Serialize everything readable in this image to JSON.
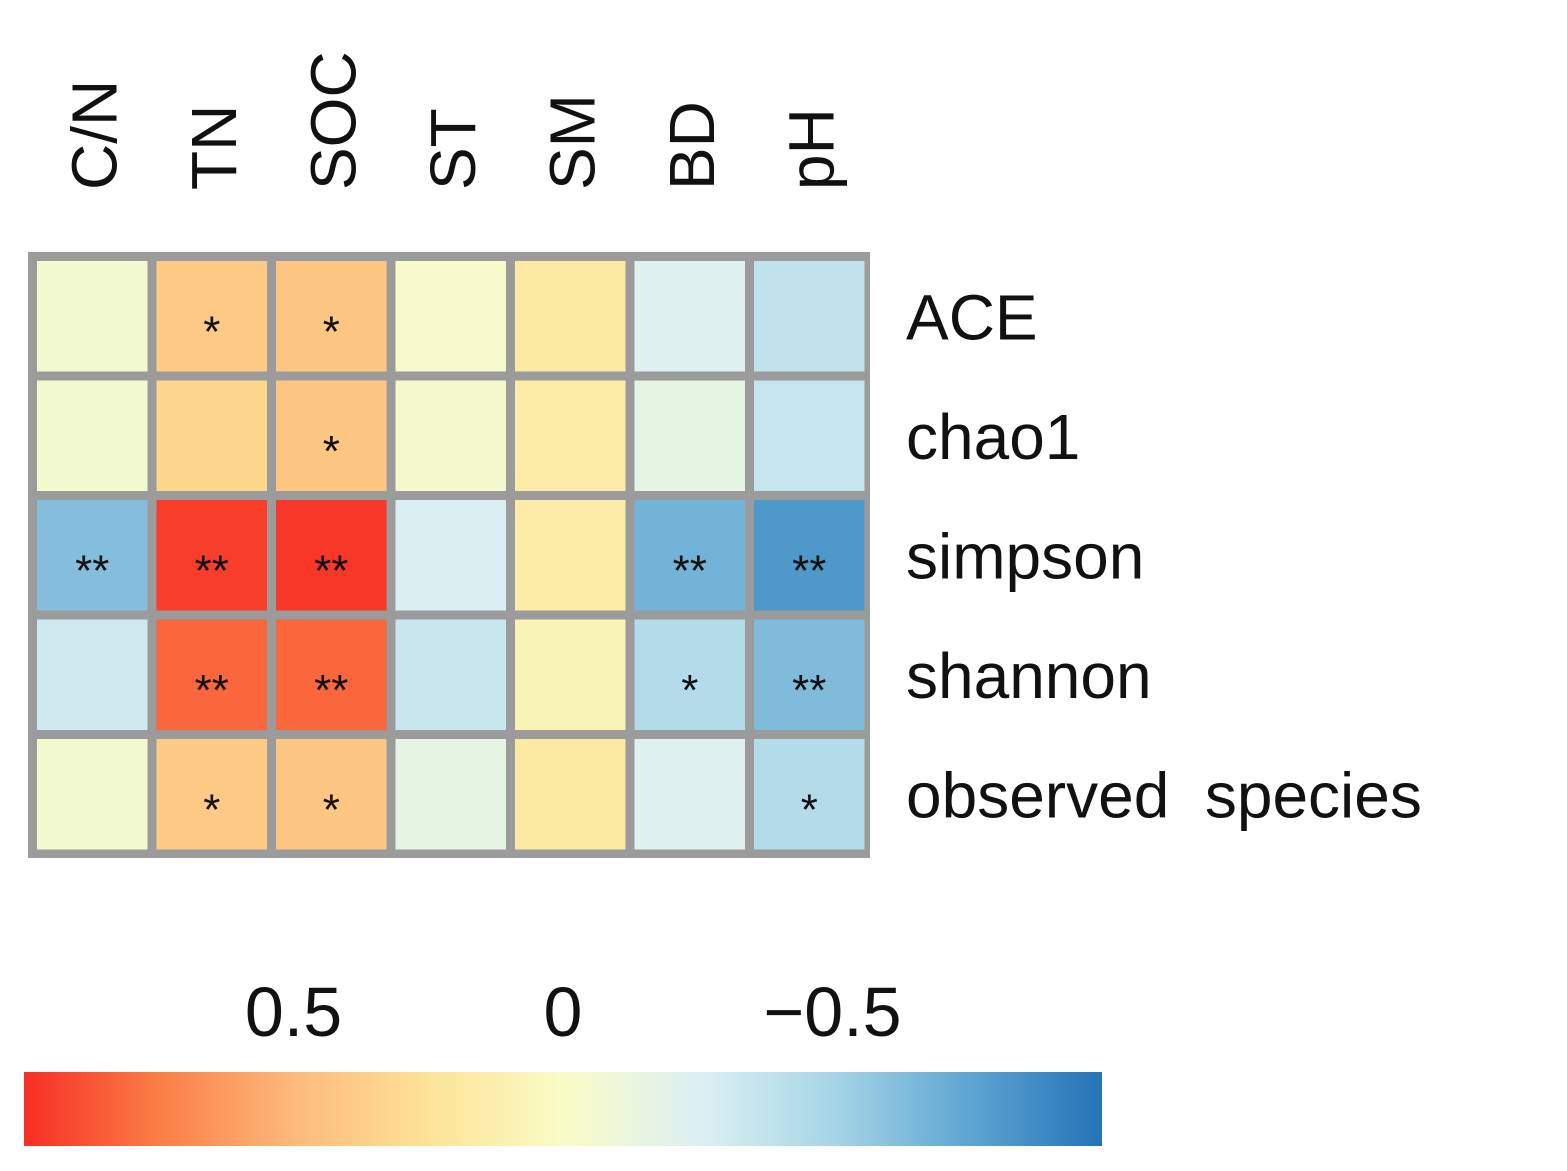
{
  "chart_data": {
    "type": "heatmap",
    "title": "",
    "columns": [
      "C/N",
      "TN",
      "SOC",
      "ST",
      "SM",
      "BD",
      "pH"
    ],
    "rows": [
      "ACE",
      "chao1",
      "simpson",
      "shannon",
      "observed  species"
    ],
    "values": [
      [
        -0.05,
        0.4,
        0.42,
        -0.02,
        0.18,
        -0.22,
        -0.38
      ],
      [
        -0.05,
        0.32,
        0.42,
        -0.04,
        0.16,
        -0.16,
        -0.36
      ],
      [
        -0.62,
        0.95,
        0.97,
        -0.26,
        0.16,
        -0.68,
        -0.82
      ],
      [
        -0.32,
        0.82,
        0.82,
        -0.34,
        0.08,
        -0.44,
        -0.64
      ],
      [
        -0.05,
        0.4,
        0.42,
        -0.16,
        0.18,
        -0.22,
        -0.44
      ]
    ],
    "significance": [
      [
        "",
        "*",
        "*",
        "",
        "",
        "",
        ""
      ],
      [
        "",
        "",
        "*",
        "",
        "",
        "",
        ""
      ],
      [
        "**",
        "**",
        "**",
        "",
        "",
        "**",
        "**"
      ],
      [
        "",
        "**",
        "**",
        "",
        "",
        "*",
        "**"
      ],
      [
        "",
        "*",
        "*",
        "",
        "",
        "",
        "*"
      ]
    ],
    "colorbar": {
      "range": [
        1,
        -1
      ],
      "colors": [
        "#f72e24",
        "#fb7d46",
        "#fdb97a",
        "#fde396",
        "#f9fbc6",
        "#dcf0f3",
        "#a7d5e6",
        "#5fa6d2",
        "#2373b6"
      ],
      "ticks": [
        {
          "value": 0.5,
          "label": "0.5"
        },
        {
          "value": 0,
          "label": "0"
        },
        {
          "value": -0.5,
          "label": "−0.5"
        }
      ]
    },
    "grid_color": "#9b9b9b"
  }
}
